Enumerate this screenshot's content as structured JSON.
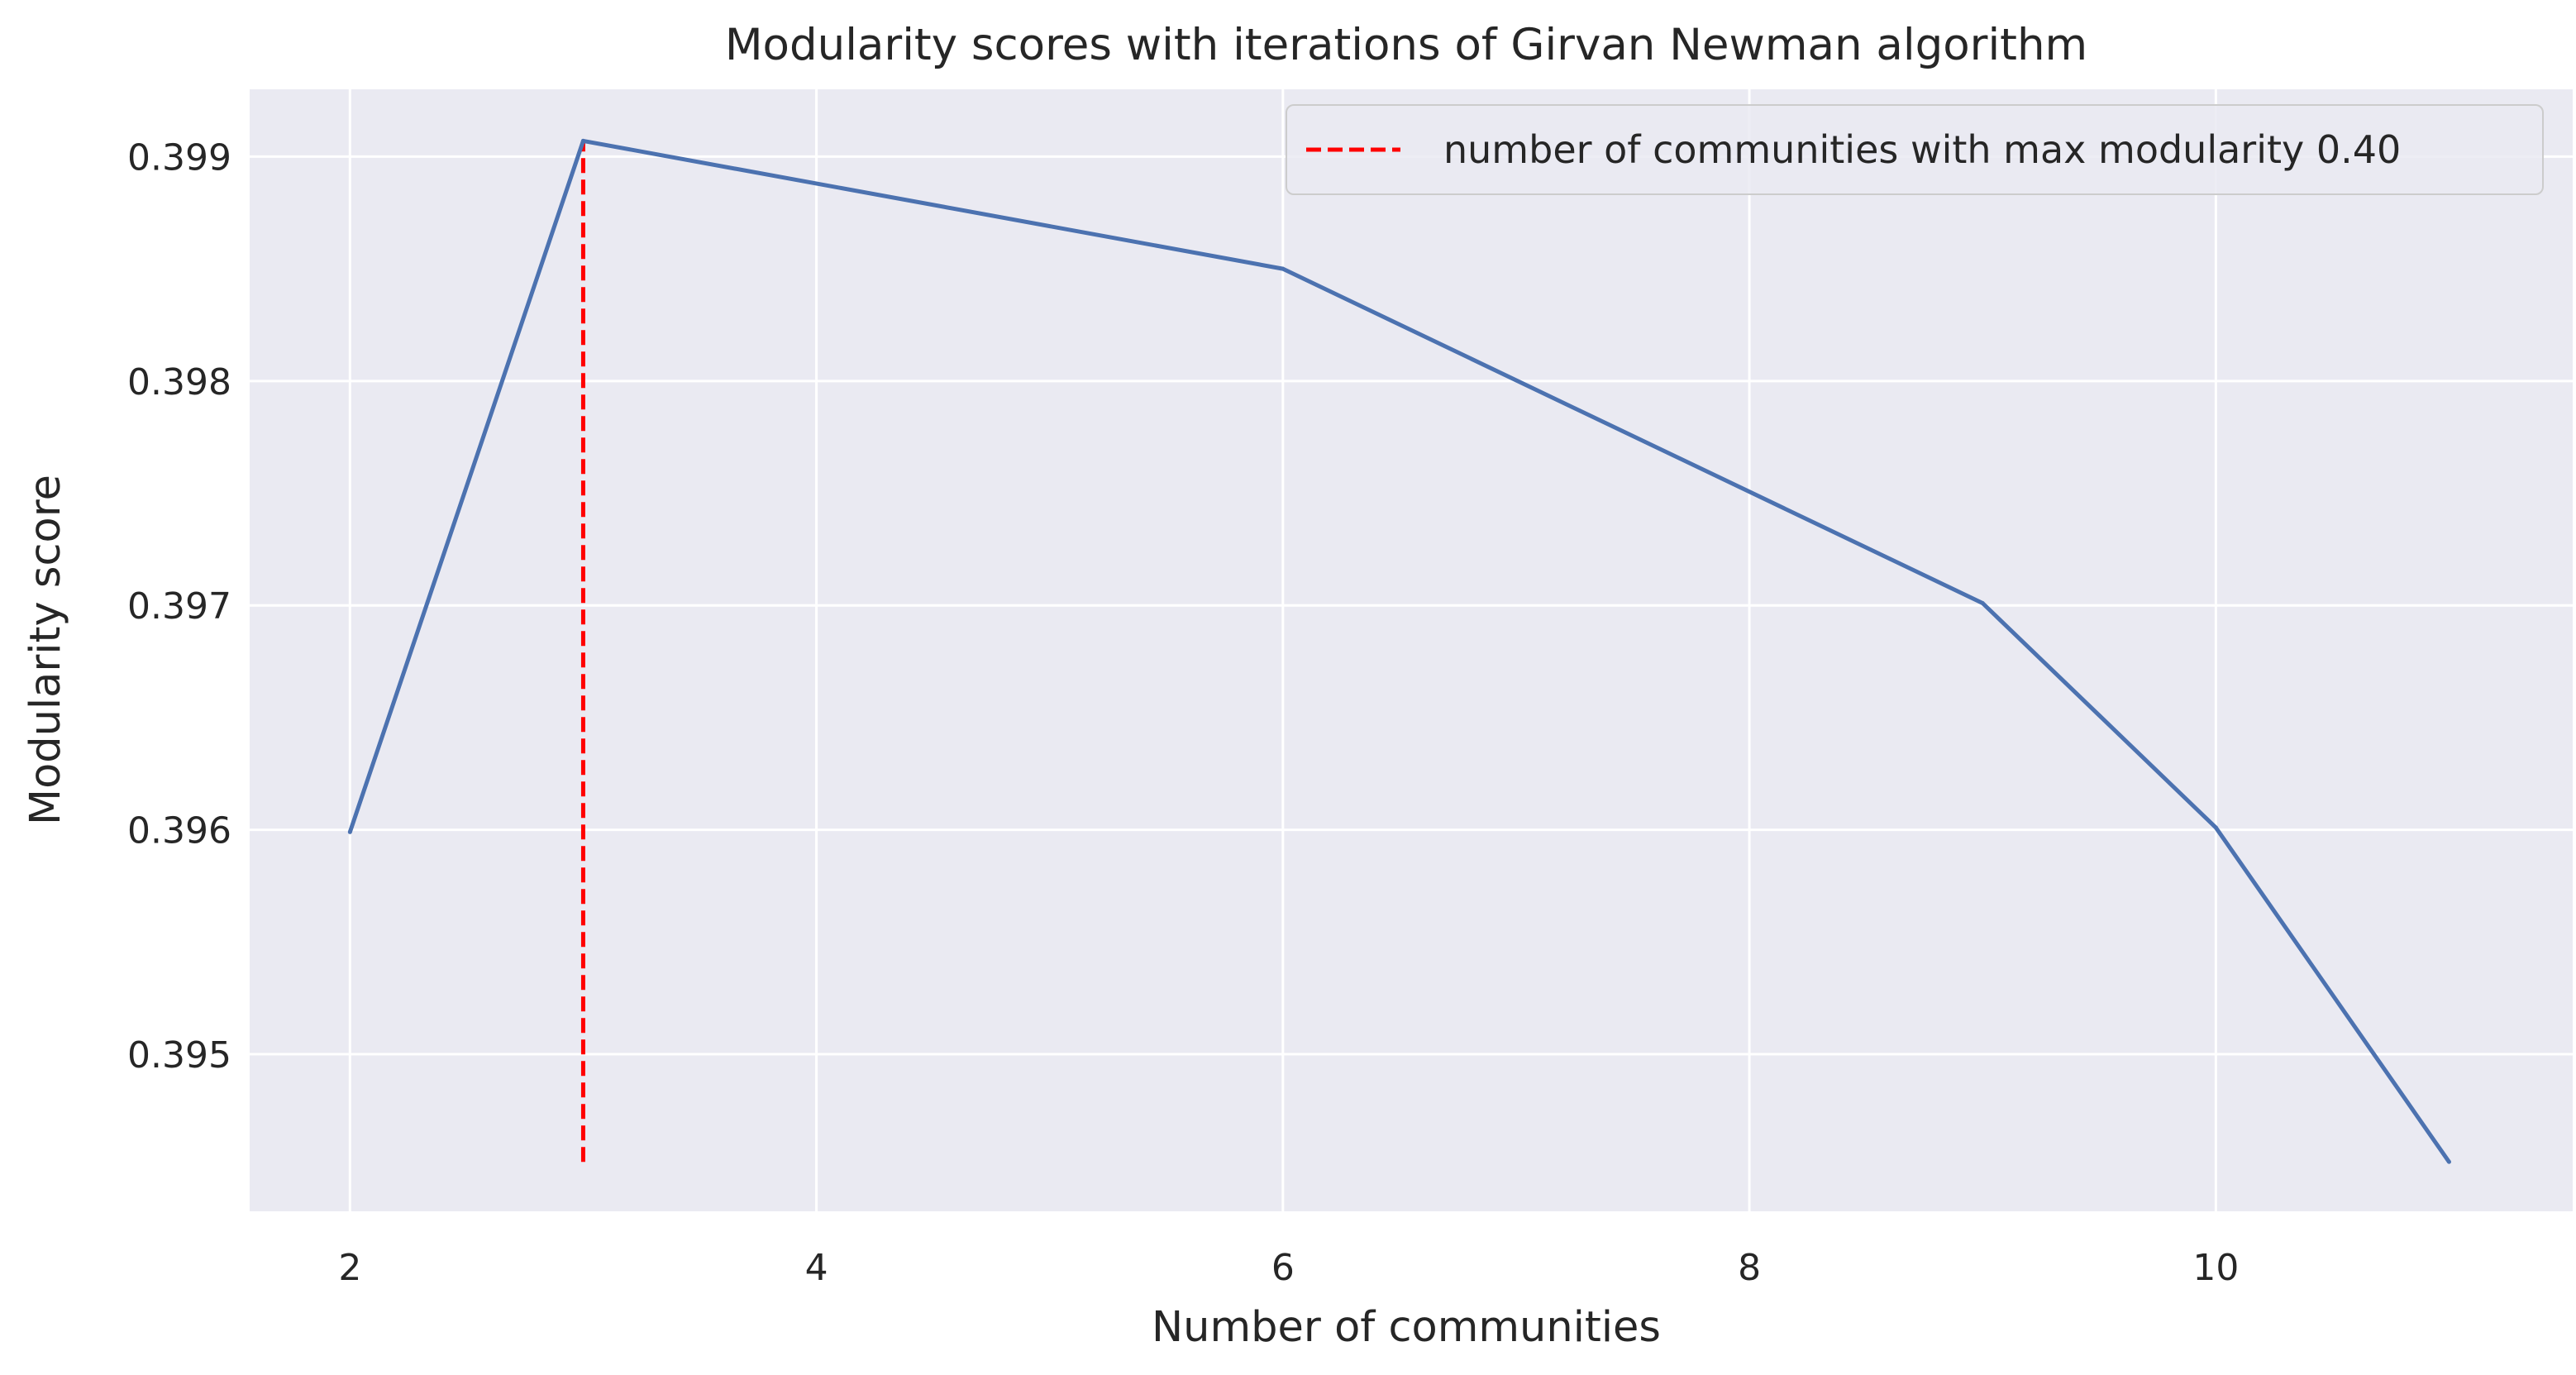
{
  "chart_data": {
    "type": "line",
    "title": "Modularity scores with iterations of Girvan Newman algorithm",
    "xlabel": "Number of communities",
    "ylabel": "Modularity score",
    "xlim": [
      1.57,
      11.53
    ],
    "ylim": [
      0.3943,
      0.3993
    ],
    "xticks": [
      2,
      4,
      6,
      8,
      10
    ],
    "yticks": [
      0.395,
      0.396,
      0.397,
      0.398,
      0.399
    ],
    "grid": true,
    "background": "#eaeaf2",
    "series": [
      {
        "color": "#4c72b0",
        "x": [
          2,
          3,
          6,
          9,
          10,
          11
        ],
        "y": [
          0.39599,
          0.39907,
          0.3985,
          0.39701,
          0.39601,
          0.39452
        ]
      }
    ],
    "vline": {
      "x": 3,
      "ymin": 0.39452,
      "ymax": 0.39907,
      "color": "#ff0000",
      "style": "dashed",
      "label": "number of communities with max modularity 0.40"
    },
    "legend": {
      "placement": "top-right",
      "entries": [
        "number of communities with max modularity 0.40"
      ]
    }
  }
}
